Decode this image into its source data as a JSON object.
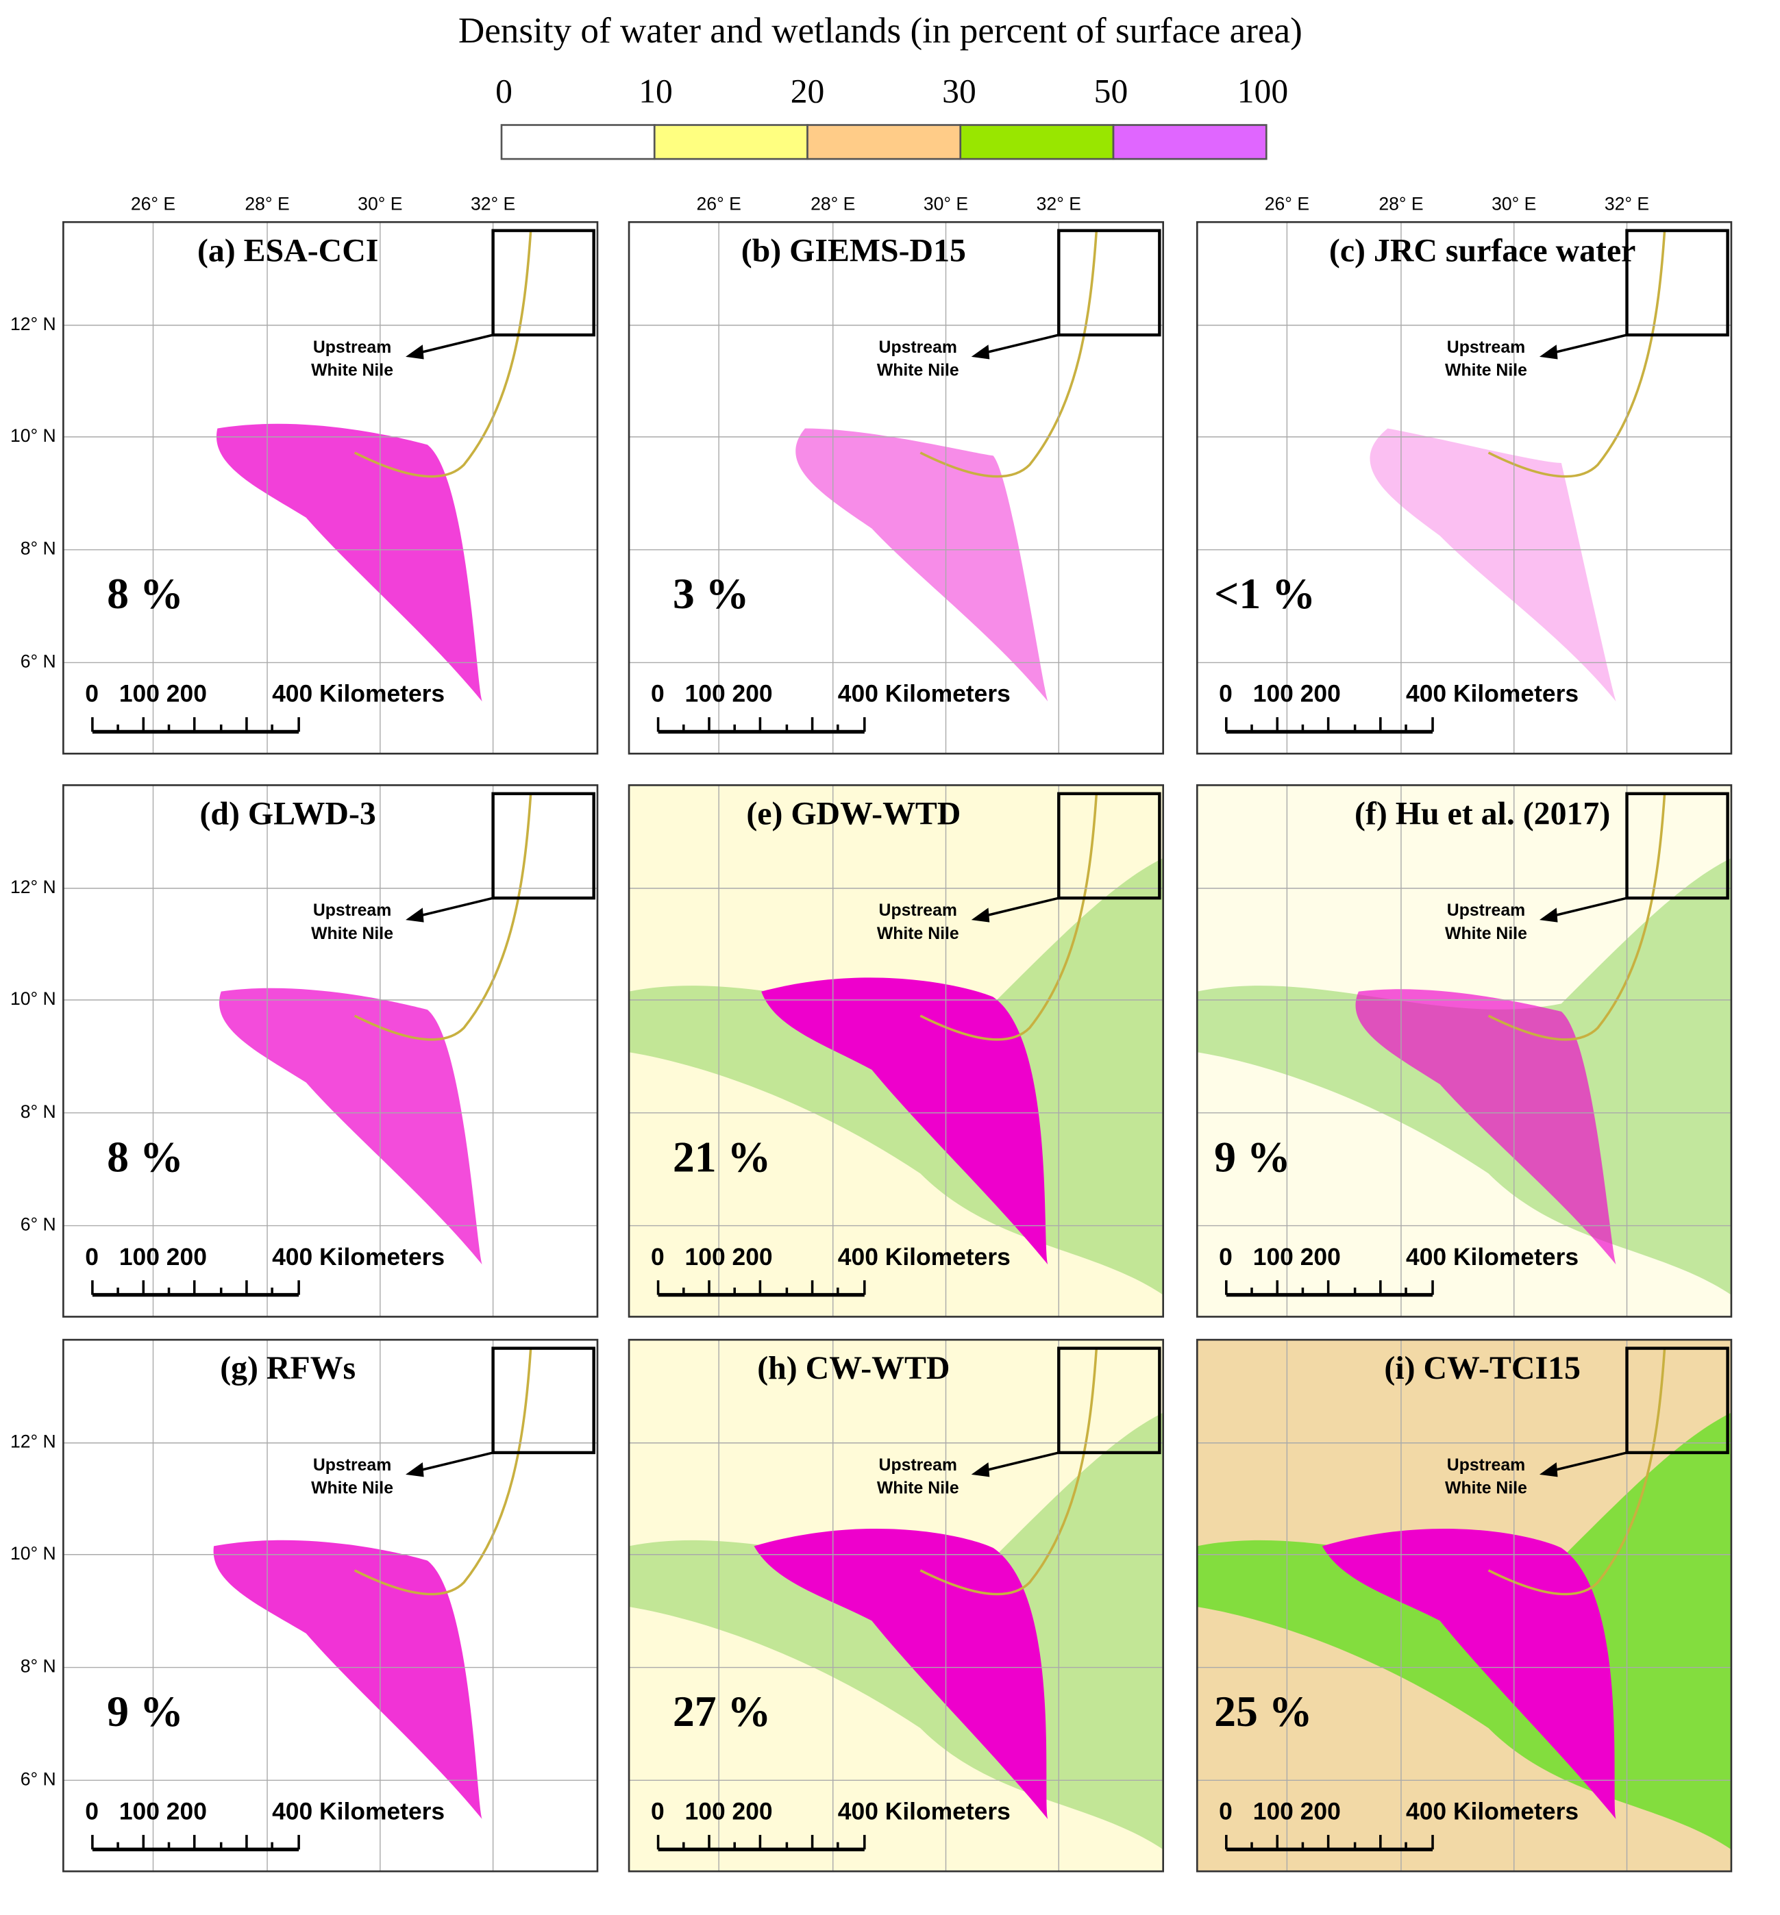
{
  "title": "Density of water and wetlands (in percent of surface area)",
  "legend": {
    "ticks": [
      "0",
      "10",
      "20",
      "30",
      "50",
      "100"
    ],
    "colors": [
      "#ffffff",
      "#ffff80",
      "#ffcc88",
      "#99e600",
      "#e066ff"
    ]
  },
  "x_axis_labels": [
    "26° E",
    "28° E",
    "30° E",
    "32° E"
  ],
  "y_axis_labels": [
    "12° N",
    "10° N",
    "8° N",
    "6° N"
  ],
  "annotation": [
    "Upstream",
    "White Nile"
  ],
  "scale_bar": [
    "0",
    "100 200",
    "400 Kilometers"
  ],
  "panels": [
    {
      "label": "(a) ESA-CCI",
      "share": "8 %"
    },
    {
      "label": "(b) GIEMS-D15",
      "share": "3 %"
    },
    {
      "label": "(c) JRC surface water",
      "share": "<1 %"
    },
    {
      "label": "(d) GLWD-3",
      "share": "8 %"
    },
    {
      "label": "(e) GDW-WTD",
      "share": "21 %"
    },
    {
      "label": "(f) Hu et al. (2017)",
      "share": "9 %"
    },
    {
      "label": "(g) RFWs",
      "share": "9 %"
    },
    {
      "label": "(h) CW-WTD",
      "share": "27 %"
    },
    {
      "label": "(i) CW-TCI15",
      "share": "25 %"
    }
  ]
}
